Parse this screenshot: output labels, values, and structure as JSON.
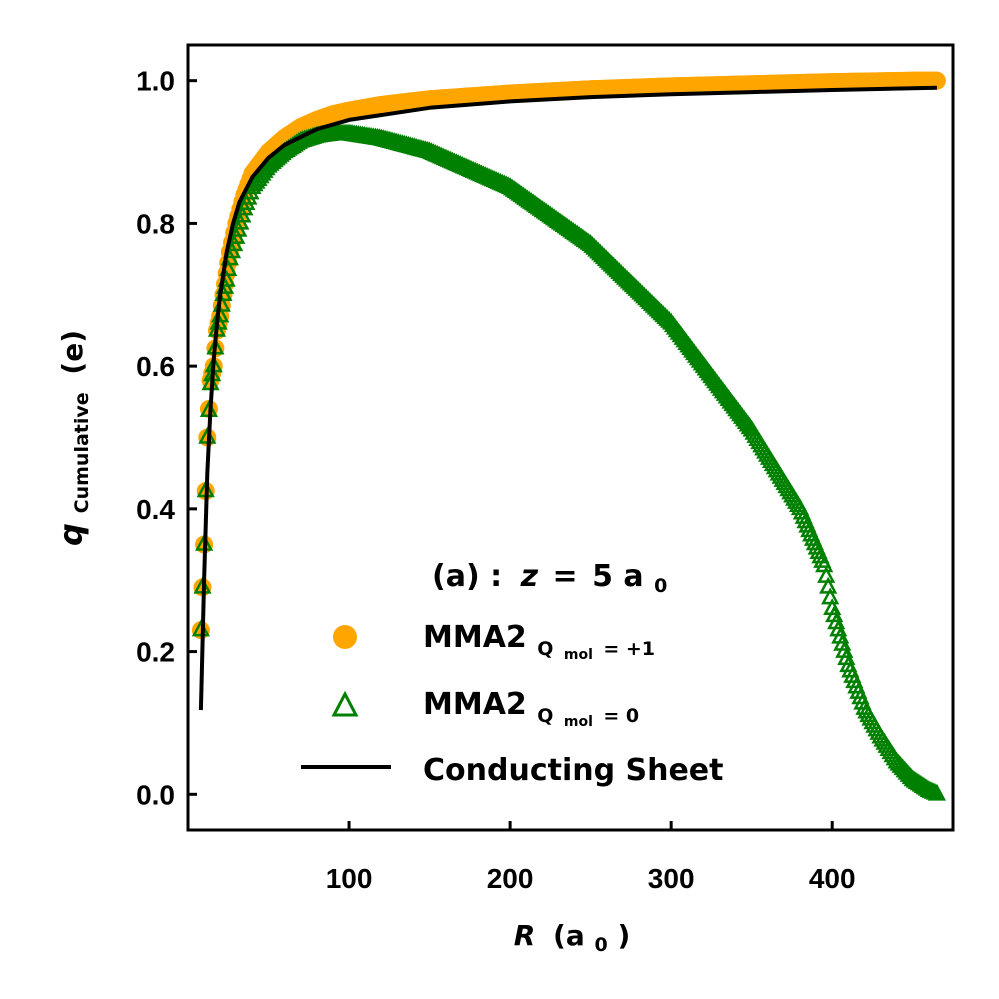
{
  "chart_data": {
    "type": "scatter",
    "title": "",
    "annotation": {
      "prefix": "(a)",
      "colon": ":",
      "var": "z",
      "eq": "=",
      "value": "5 a",
      "sub": "0"
    },
    "xlabel": {
      "var": "R",
      "unit": "(a",
      "unit_sub": "0",
      "close": ")"
    },
    "ylabel": {
      "var": "q",
      "sub": "Cumulative",
      "unit": "(e)"
    },
    "xlim": [
      0,
      475
    ],
    "ylim": [
      -0.05,
      1.05
    ],
    "xticks": [
      100,
      200,
      300,
      400
    ],
    "yticks": [
      0.0,
      0.2,
      0.4,
      0.6,
      0.8,
      1.0
    ],
    "xtick_labels": [
      "100",
      "200",
      "300",
      "400"
    ],
    "ytick_labels": [
      "0.0",
      "0.2",
      "0.4",
      "0.6",
      "0.8",
      "1.0"
    ],
    "legend_position": "lower-center",
    "series": [
      {
        "name": "MMA2",
        "label_sub": "Q",
        "label_subsub": "mol",
        "label_sub_tail": " = +1",
        "style": "filled-circle",
        "color": "#FFA500",
        "x": [
          8,
          10,
          12,
          14,
          16,
          18,
          20,
          22,
          24,
          26,
          30,
          35,
          40,
          50,
          60,
          70,
          80,
          90,
          100,
          120,
          150,
          200,
          250,
          300,
          350,
          400,
          450,
          460,
          465
        ],
        "y": [
          0.23,
          0.35,
          0.5,
          0.58,
          0.6,
          0.65,
          0.67,
          0.7,
          0.73,
          0.76,
          0.8,
          0.84,
          0.87,
          0.9,
          0.92,
          0.935,
          0.945,
          0.953,
          0.958,
          0.966,
          0.974,
          0.982,
          0.988,
          0.992,
          0.995,
          0.998,
          1.0,
          1.0,
          1.0
        ]
      },
      {
        "name": "MMA2",
        "label_sub": "Q",
        "label_subsub": "mol",
        "label_sub_tail": " = 0",
        "style": "open-triangle",
        "color": "#008000",
        "x": [
          8,
          10,
          12,
          14,
          16,
          18,
          20,
          22,
          24,
          26,
          30,
          35,
          40,
          50,
          60,
          70,
          80,
          90,
          100,
          120,
          150,
          200,
          250,
          300,
          350,
          380,
          395,
          400,
          410,
          420,
          430,
          440,
          450,
          460,
          465
        ],
        "y": [
          0.23,
          0.35,
          0.5,
          0.575,
          0.6,
          0.65,
          0.67,
          0.7,
          0.72,
          0.75,
          0.78,
          0.82,
          0.85,
          0.88,
          0.9,
          0.915,
          0.922,
          0.925,
          0.925,
          0.918,
          0.9,
          0.85,
          0.77,
          0.66,
          0.51,
          0.4,
          0.32,
          0.26,
          0.18,
          0.12,
          0.08,
          0.045,
          0.02,
          0.005,
          0.0
        ]
      },
      {
        "name": "Conducting Sheet",
        "style": "line",
        "color": "#000000",
        "x": [
          8,
          10,
          12,
          14,
          16,
          18,
          20,
          24,
          28,
          32,
          40,
          50,
          60,
          80,
          100,
          150,
          200,
          250,
          300,
          350,
          400,
          465
        ],
        "y": [
          0.118,
          0.3,
          0.45,
          0.54,
          0.61,
          0.66,
          0.7,
          0.76,
          0.8,
          0.83,
          0.865,
          0.892,
          0.91,
          0.932,
          0.945,
          0.962,
          0.971,
          0.977,
          0.981,
          0.984,
          0.987,
          0.99
        ]
      }
    ]
  }
}
